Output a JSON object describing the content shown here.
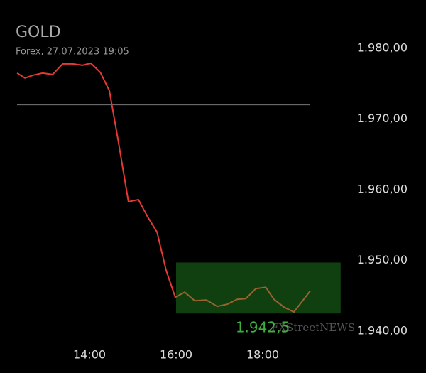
{
  "chart_data": {
    "type": "line",
    "title": "GOLD",
    "subtitle": "Forex, 27.07.2023 19:05",
    "background": "#000000",
    "x": [
      12.33,
      12.51,
      12.7,
      12.92,
      13.15,
      13.38,
      13.61,
      13.84,
      14.03,
      14.25,
      14.46,
      14.67,
      14.9,
      15.13,
      15.34,
      15.56,
      15.77,
      15.98,
      16.2,
      16.43,
      16.7,
      16.95,
      17.18,
      17.41,
      17.61,
      17.84,
      18.07,
      18.26,
      18.49,
      18.72,
      19.1
    ],
    "series": [
      {
        "name": "GOLD",
        "color": "#e53935",
        "values": [
          1976.5,
          1975.8,
          1976.2,
          1976.5,
          1976.3,
          1977.8,
          1977.8,
          1977.6,
          1977.9,
          1976.6,
          1974.0,
          1966.7,
          1958.3,
          1958.6,
          1956.2,
          1954.0,
          1948.6,
          1944.8,
          1945.5,
          1944.3,
          1944.4,
          1943.5,
          1943.8,
          1944.5,
          1944.6,
          1946.0,
          1946.2,
          1944.5,
          1943.4,
          1942.7,
          1945.7
        ]
      }
    ],
    "xlim": [
      12,
      21.5
    ],
    "xticks": [
      {
        "value": 14,
        "label": "14:00"
      },
      {
        "value": 16,
        "label": "16:00"
      },
      {
        "value": 18,
        "label": "18:00"
      }
    ],
    "ylim": [
      1940,
      1980
    ],
    "yticks": [
      {
        "value": 1940,
        "label": "1.940,00"
      },
      {
        "value": 1950,
        "label": "1.950,00"
      },
      {
        "value": 1960,
        "label": "1.960,00"
      },
      {
        "value": 1970,
        "label": "1.970,00"
      },
      {
        "value": 1980,
        "label": "1.980,00"
      }
    ],
    "reference_line": {
      "value": 1972,
      "color": "#777777"
    },
    "highlight": {
      "x": [
        16,
        19.8
      ],
      "y": [
        1942.5,
        1949.7
      ],
      "color": "#28a028"
    },
    "annotation": {
      "x": 18,
      "value": 1942.5,
      "label": "1.942,5",
      "color": "#3fae3f"
    },
    "watermark": "FXStreetNEWS"
  }
}
